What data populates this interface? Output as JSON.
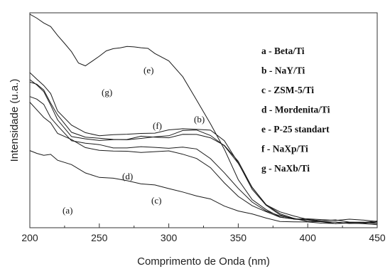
{
  "chart_data": {
    "type": "line",
    "xlabel": "Comprimento de Onda (nm)",
    "ylabel": "Intensidade (u.a.)",
    "xlim": [
      200,
      450
    ],
    "ylim": [
      0,
      1
    ],
    "x_ticks": [
      200,
      250,
      300,
      350,
      400,
      450
    ],
    "grid": false,
    "legend_position": "top-right",
    "legend": [
      "a - Beta/Ti",
      "b - NaY/Ti",
      "c - ZSM-5/Ti",
      "d - Mordenita/Ti",
      "e - P-25 standart",
      "f - NaXp/Ti",
      "g - NaXb/Ti"
    ],
    "series": [
      {
        "label": "(a)",
        "x": [
          200,
          205,
          210,
          215,
          220,
          230,
          240,
          250,
          260,
          270,
          280,
          290,
          300,
          310,
          320,
          330,
          340,
          350,
          360,
          370,
          380,
          390,
          400,
          410,
          420,
          430,
          440,
          450
        ],
        "y": [
          0.35,
          0.34,
          0.34,
          0.33,
          0.31,
          0.28,
          0.25,
          0.23,
          0.22,
          0.21,
          0.2,
          0.19,
          0.17,
          0.16,
          0.14,
          0.12,
          0.09,
          0.07,
          0.05,
          0.03,
          0.02,
          0.015,
          0.01,
          0.01,
          0.01,
          0.005,
          0.005,
          0.005
        ]
      },
      {
        "label": "(b)",
        "x": [
          200,
          205,
          210,
          215,
          220,
          230,
          240,
          250,
          260,
          270,
          280,
          290,
          300,
          310,
          320,
          330,
          340,
          350,
          360,
          370,
          380,
          390,
          400,
          410,
          420,
          430,
          440,
          450
        ],
        "y": [
          0.7,
          0.67,
          0.63,
          0.58,
          0.5,
          0.43,
          0.41,
          0.4,
          0.41,
          0.41,
          0.42,
          0.42,
          0.42,
          0.43,
          0.43,
          0.42,
          0.38,
          0.3,
          0.18,
          0.1,
          0.05,
          0.03,
          0.02,
          0.015,
          0.01,
          0.01,
          0.01,
          0.01
        ]
      },
      {
        "label": "(c)",
        "x": [
          200,
          205,
          210,
          215,
          220,
          230,
          240,
          250,
          260,
          270,
          280,
          290,
          300,
          310,
          320,
          330,
          340,
          350,
          360,
          370,
          380,
          390,
          400,
          410,
          420,
          430,
          440,
          450
        ],
        "y": [
          0.58,
          0.55,
          0.52,
          0.48,
          0.44,
          0.4,
          0.37,
          0.36,
          0.35,
          0.35,
          0.35,
          0.35,
          0.35,
          0.34,
          0.32,
          0.27,
          0.2,
          0.14,
          0.09,
          0.06,
          0.04,
          0.03,
          0.02,
          0.015,
          0.01,
          0.01,
          0.01,
          0.01
        ]
      },
      {
        "label": "(d)",
        "x": [
          200,
          205,
          210,
          215,
          220,
          230,
          240,
          250,
          260,
          270,
          280,
          290,
          300,
          310,
          320,
          330,
          340,
          350,
          360,
          370,
          380,
          390,
          400,
          410,
          420,
          430,
          440,
          450
        ],
        "y": [
          0.62,
          0.6,
          0.57,
          0.52,
          0.47,
          0.41,
          0.39,
          0.38,
          0.37,
          0.37,
          0.37,
          0.37,
          0.37,
          0.37,
          0.36,
          0.32,
          0.25,
          0.17,
          0.11,
          0.07,
          0.04,
          0.03,
          0.02,
          0.015,
          0.01,
          0.01,
          0.01,
          0.01
        ]
      },
      {
        "label": "(e)",
        "x": [
          200,
          205,
          210,
          215,
          220,
          225,
          230,
          235,
          240,
          245,
          250,
          255,
          260,
          265,
          270,
          275,
          280,
          285,
          290,
          300,
          310,
          320,
          330,
          340,
          350,
          360,
          370,
          380,
          390,
          400,
          410,
          420,
          430,
          440,
          450
        ],
        "y": [
          1.0,
          0.99,
          0.97,
          0.94,
          0.91,
          0.87,
          0.82,
          0.78,
          0.76,
          0.78,
          0.81,
          0.83,
          0.84,
          0.85,
          0.85,
          0.85,
          0.85,
          0.84,
          0.82,
          0.78,
          0.71,
          0.6,
          0.48,
          0.36,
          0.22,
          0.12,
          0.07,
          0.04,
          0.03,
          0.025,
          0.025,
          0.025,
          0.025,
          0.02,
          0.02
        ]
      },
      {
        "label": "(f)",
        "x": [
          200,
          205,
          210,
          215,
          220,
          230,
          240,
          250,
          260,
          270,
          280,
          290,
          300,
          310,
          320,
          330,
          340,
          350,
          360,
          370,
          380,
          390,
          400,
          410,
          420,
          430,
          440,
          450
        ],
        "y": [
          0.69,
          0.67,
          0.64,
          0.59,
          0.52,
          0.45,
          0.42,
          0.41,
          0.41,
          0.41,
          0.41,
          0.42,
          0.43,
          0.45,
          0.45,
          0.43,
          0.38,
          0.29,
          0.18,
          0.1,
          0.06,
          0.04,
          0.03,
          0.02,
          0.02,
          0.015,
          0.015,
          0.015
        ]
      },
      {
        "label": "(g)",
        "x": [
          200,
          205,
          210,
          215,
          220,
          230,
          240,
          250,
          260,
          270,
          280,
          290,
          300,
          310,
          320,
          330,
          340,
          350,
          360,
          370,
          380,
          390,
          400,
          410,
          420,
          430,
          440,
          450
        ],
        "y": [
          0.72,
          0.7,
          0.67,
          0.62,
          0.55,
          0.47,
          0.44,
          0.43,
          0.43,
          0.43,
          0.44,
          0.44,
          0.45,
          0.46,
          0.46,
          0.45,
          0.4,
          0.3,
          0.17,
          0.09,
          0.05,
          0.03,
          0.02,
          0.015,
          0.01,
          0.01,
          0.01,
          0.01
        ]
      }
    ]
  }
}
